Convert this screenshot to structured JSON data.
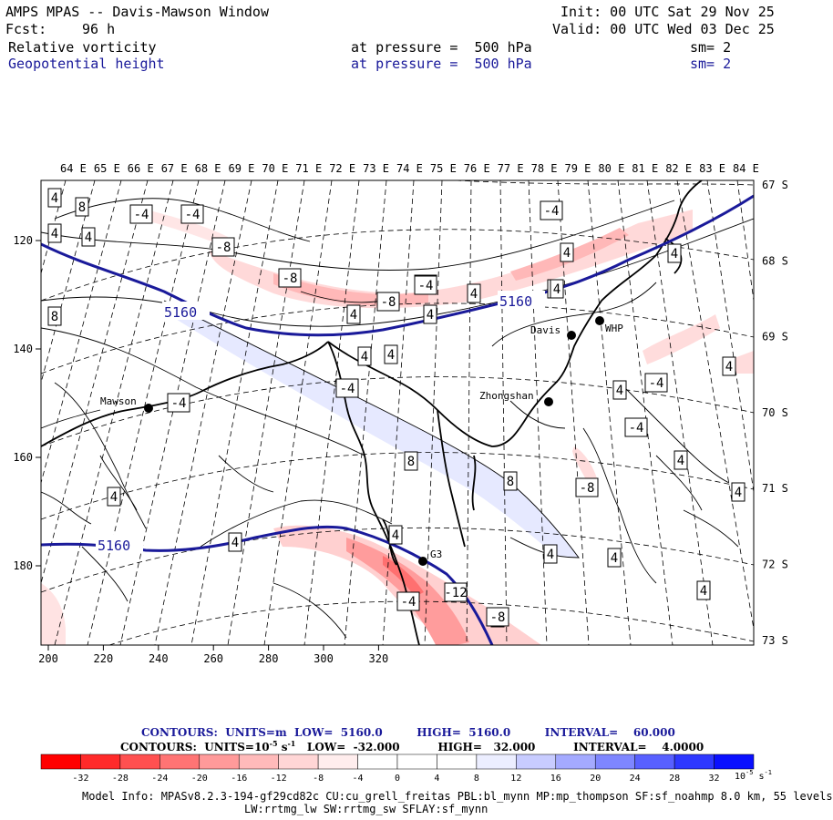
{
  "header": {
    "title": "AMPS MPAS -- Davis-Mawson Window",
    "init": "Init: 00 UTC Sat 29 Nov 25",
    "fcst_label": "Fcst:",
    "fcst_value": "96 h",
    "valid": "Valid: 00 UTC Wed 03 Dec 25",
    "field1_name": "Relative vorticity",
    "field1_level": "at pressure =  500 hPa",
    "field1_sm": "sm= 2",
    "field2_name": "Geopotential height",
    "field2_level": "at pressure =  500 hPa",
    "field2_sm": "sm= 2"
  },
  "map": {
    "top_longitudes": [
      "64 E",
      "65 E",
      "66 E",
      "67 E",
      "68 E",
      "69 E",
      "70 E",
      "71 E",
      "72 E",
      "73 E",
      "74 E",
      "75 E",
      "76 E",
      "77 E",
      "78 E",
      "79 E",
      "80 E",
      "81 E",
      "82 E",
      "83 E",
      "84 E"
    ],
    "right_latitudes": [
      "67 S",
      "68 S",
      "69 S",
      "70 S",
      "71 S",
      "72 S",
      "73 S"
    ],
    "x_ticks": [
      "200",
      "220",
      "240",
      "260",
      "280",
      "300",
      "320"
    ],
    "y_ticks": [
      "120",
      "140",
      "160",
      "180"
    ],
    "stations": [
      {
        "name": "Mawson"
      },
      {
        "name": "Davis"
      },
      {
        "name": "WHP"
      },
      {
        "name": "Zhongshan"
      },
      {
        "name": "G3"
      }
    ],
    "height_labels": [
      "5160",
      "5160",
      "5160"
    ],
    "vort_labels": [
      "4",
      "8",
      "-4",
      "-4",
      "4",
      "4",
      "-8",
      "-8",
      "-4",
      "4",
      "4",
      "-8",
      "-4",
      "4",
      "4",
      "4",
      "4",
      "4",
      "8",
      "-4",
      "-4",
      "-4",
      "4",
      "-4",
      "4",
      "4",
      "4",
      "8",
      "8",
      "-4",
      "4",
      "4",
      "4",
      "4",
      "-8",
      "4",
      "4",
      "4",
      "4",
      "-4",
      "-12",
      "-8",
      "4",
      "4"
    ]
  },
  "footer": {
    "contours1": "CONTOURS:  UNITS=m  LOW=  5160.0         HIGH=  5160.0         INTERVAL=    60.000",
    "contours2_a": "CONTOURS:  UNITS=10",
    "contours2_sup": "-5",
    "contours2_b": " s",
    "contours2_sup2": "-1",
    "contours2_c": "   LOW=  -32.000          HIGH=   32.000          INTERVAL=    4.0000",
    "colorbar_ticks": [
      "-32",
      "-28",
      "-24",
      "-20",
      "-16",
      "-12",
      "-8",
      "-4",
      "0",
      "4",
      "8",
      "12",
      "16",
      "20",
      "24",
      "28",
      "32"
    ],
    "colorbar_units": "10",
    "colorbar_units_sup": "-5",
    "colorbar_units_s": " s",
    "colorbar_units_sup2": "-1",
    "colorbar_colors": [
      "#ff0000",
      "#ff2a2a",
      "#ff5050",
      "#ff7474",
      "#ff9a9a",
      "#ffbaba",
      "#ffd6d6",
      "#ffeded",
      "#ffffff",
      "#ffffff",
      "#eceeff",
      "#c8ccff",
      "#a4aaff",
      "#7e86ff",
      "#5860ff",
      "#2e38ff",
      "#0a10ff"
    ],
    "model_info1": "Model Info: MPASv8.2.3-194-gf29cd82c CU:cu_grell_freitas PBL:bl_mynn MP:mp_thompson SF:sf_noahmp 8.0 km, 55 levels",
    "model_info2": "LW:rrtmg_lw SW:rrtmg_sw SFLAY:sf_mynn"
  }
}
